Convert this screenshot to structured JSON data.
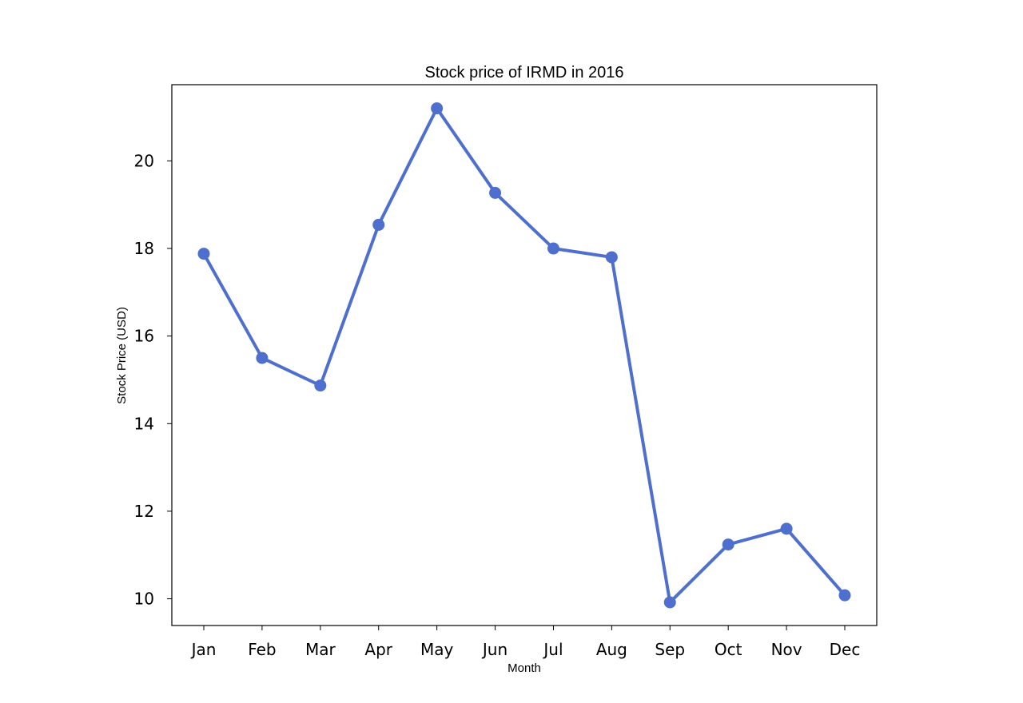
{
  "chart_data": {
    "type": "line",
    "title": "Stock price of IRMD in 2016",
    "xlabel": "Month",
    "ylabel": "Stock Price (USD)",
    "categories": [
      "Jan",
      "Feb",
      "Mar",
      "Apr",
      "May",
      "Jun",
      "Jul",
      "Aug",
      "Sep",
      "Oct",
      "Nov",
      "Dec"
    ],
    "series": [
      {
        "values": [
          17.88,
          15.5,
          14.87,
          18.54,
          21.2,
          19.27,
          18.0,
          17.8,
          9.92,
          11.24,
          11.6,
          10.08
        ]
      }
    ],
    "yticks": [
      10,
      12,
      14,
      16,
      18,
      20
    ],
    "ylim": [
      9.39,
      21.74
    ],
    "grid": false,
    "legend": "none",
    "color": "#4f6fcf"
  }
}
